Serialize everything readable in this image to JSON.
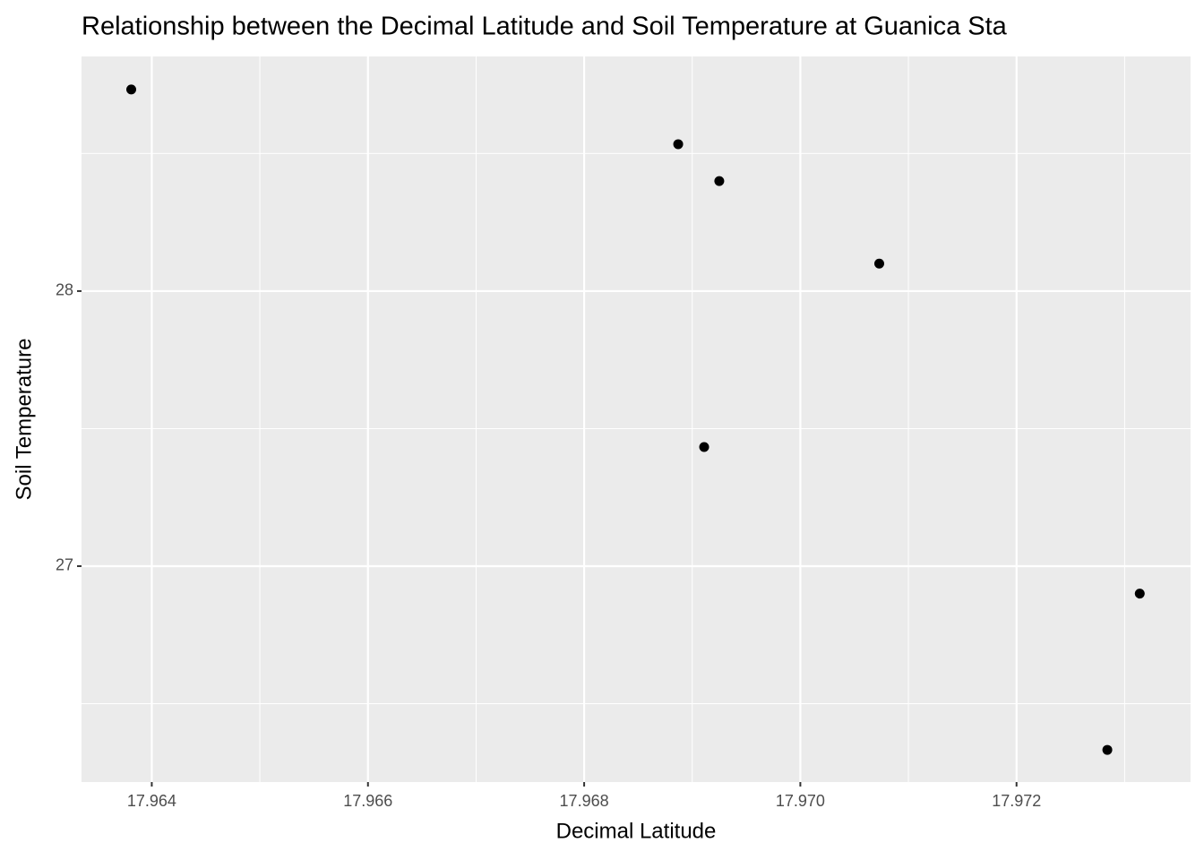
{
  "chart_data": {
    "type": "scatter",
    "title": "Relationship between the Decimal Latitude and Soil Temperature at Guanica Sta",
    "x_label": "Decimal Latitude",
    "y_label": "Soil Temperature",
    "series": [
      {
        "color": "#000000",
        "x": [
          17.96381,
          17.96887,
          17.96925,
          17.97073,
          17.96911,
          17.97314,
          17.97284
        ],
        "values": [
          28.733,
          28.534,
          28.4,
          28.1,
          27.433,
          26.9,
          26.332
        ]
      }
    ],
    "xlim": [
      17.96335,
      17.97361
    ],
    "xticks": [
      17.964,
      17.966,
      17.968,
      {
        "value": 17.97,
        "label": "17.970"
      },
      17.972
    ],
    "ylim": [
      26.215,
      28.853
    ],
    "yticks": [
      27,
      28
    ],
    "grid": true
  }
}
